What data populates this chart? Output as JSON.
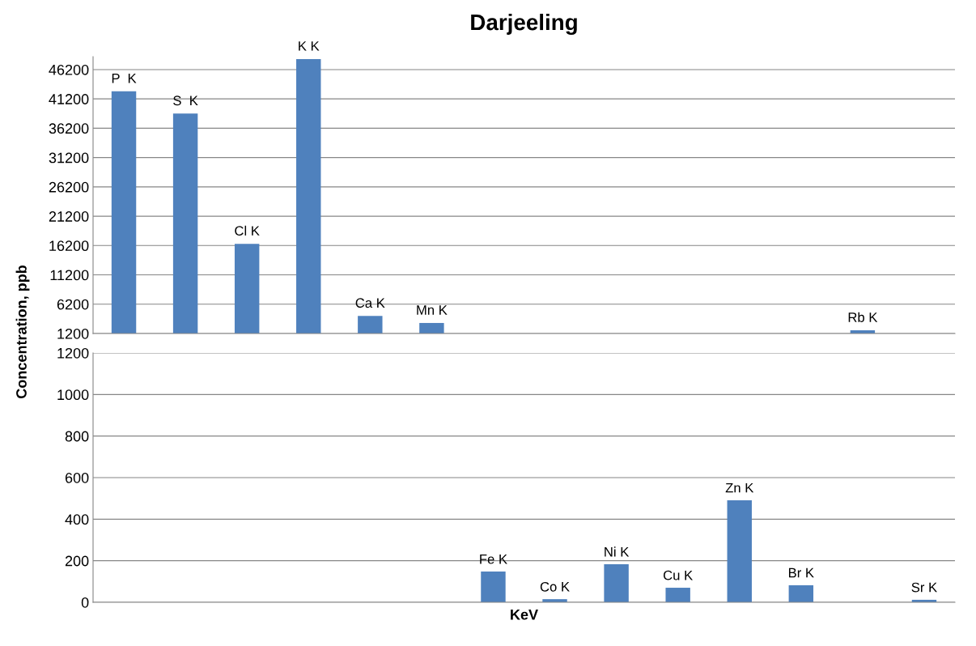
{
  "chart_data": [
    {
      "type": "bar",
      "title": "Darjeeling",
      "ylabel": "Concentration, ppb",
      "categories": [
        "P  K",
        "S  K",
        "Cl K",
        "K K",
        "Ca K",
        "Mn K",
        null,
        null,
        null,
        null,
        null,
        null,
        "Rb K",
        null
      ],
      "values": [
        42500,
        38700,
        16500,
        48000,
        4200,
        3000,
        null,
        null,
        null,
        null,
        null,
        null,
        1750,
        null
      ],
      "color": "#4f81bd",
      "ylim": [
        1200,
        48400
      ],
      "yticks": [
        1200,
        6200,
        11200,
        16200,
        21200,
        26200,
        31200,
        36200,
        41200,
        46200
      ],
      "grid": "y",
      "tick_labels": "y"
    },
    {
      "type": "bar",
      "xlabel": "KeV",
      "categories": [
        null,
        null,
        null,
        null,
        null,
        null,
        "Fe K",
        "Co K",
        "Ni K",
        "Cu K",
        "Zn K",
        "Br K",
        null,
        "Sr K"
      ],
      "values": [
        null,
        null,
        null,
        null,
        null,
        null,
        148,
        15,
        183,
        70,
        491,
        82,
        null,
        12
      ],
      "color": "#4f81bd",
      "ylim": [
        0,
        1200
      ],
      "yticks": [
        0,
        200,
        400,
        600,
        800,
        1000,
        1200
      ],
      "grid": "y",
      "tick_labels": "y"
    }
  ]
}
